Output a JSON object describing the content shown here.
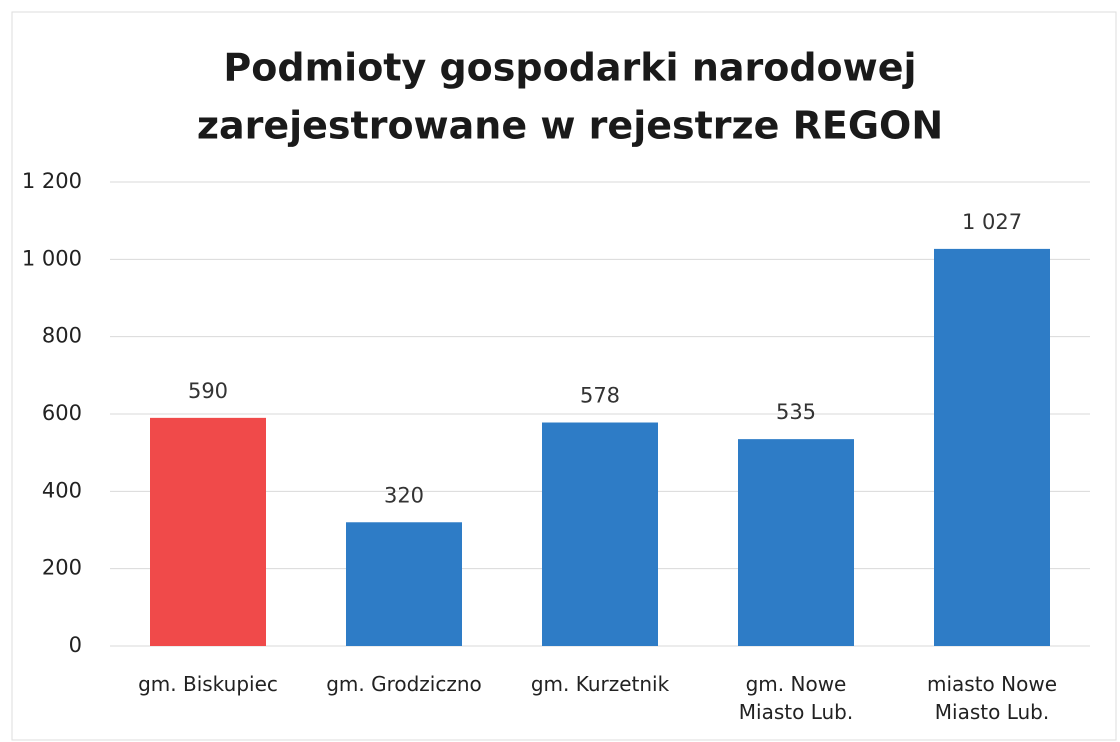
{
  "chart_data": {
    "type": "bar",
    "title": [
      "Podmioty gospodarki narodowej",
      "zarejestrowane w rejestrze REGON"
    ],
    "categories": [
      "gm. Biskupiec",
      "gm. Grodziczno",
      "gm. Kurzetnik",
      "gm. Nowe Miasto Lub.",
      "miasto Nowe Miasto Lub."
    ],
    "values": [
      590,
      320,
      578,
      535,
      1027
    ],
    "value_labels": [
      "590",
      "320",
      "578",
      "535",
      "1 027"
    ],
    "colors": [
      "#f04a4a",
      "#2e7cc6",
      "#2e7cc6",
      "#2e7cc6",
      "#2e7cc6"
    ],
    "ylim": [
      0,
      1200
    ],
    "yticks": [
      0,
      200,
      400,
      600,
      800,
      {
        "value": 1000,
        "label": "1 000"
      },
      {
        "value": 1200,
        "label": "1 200"
      }
    ],
    "grid": true
  }
}
